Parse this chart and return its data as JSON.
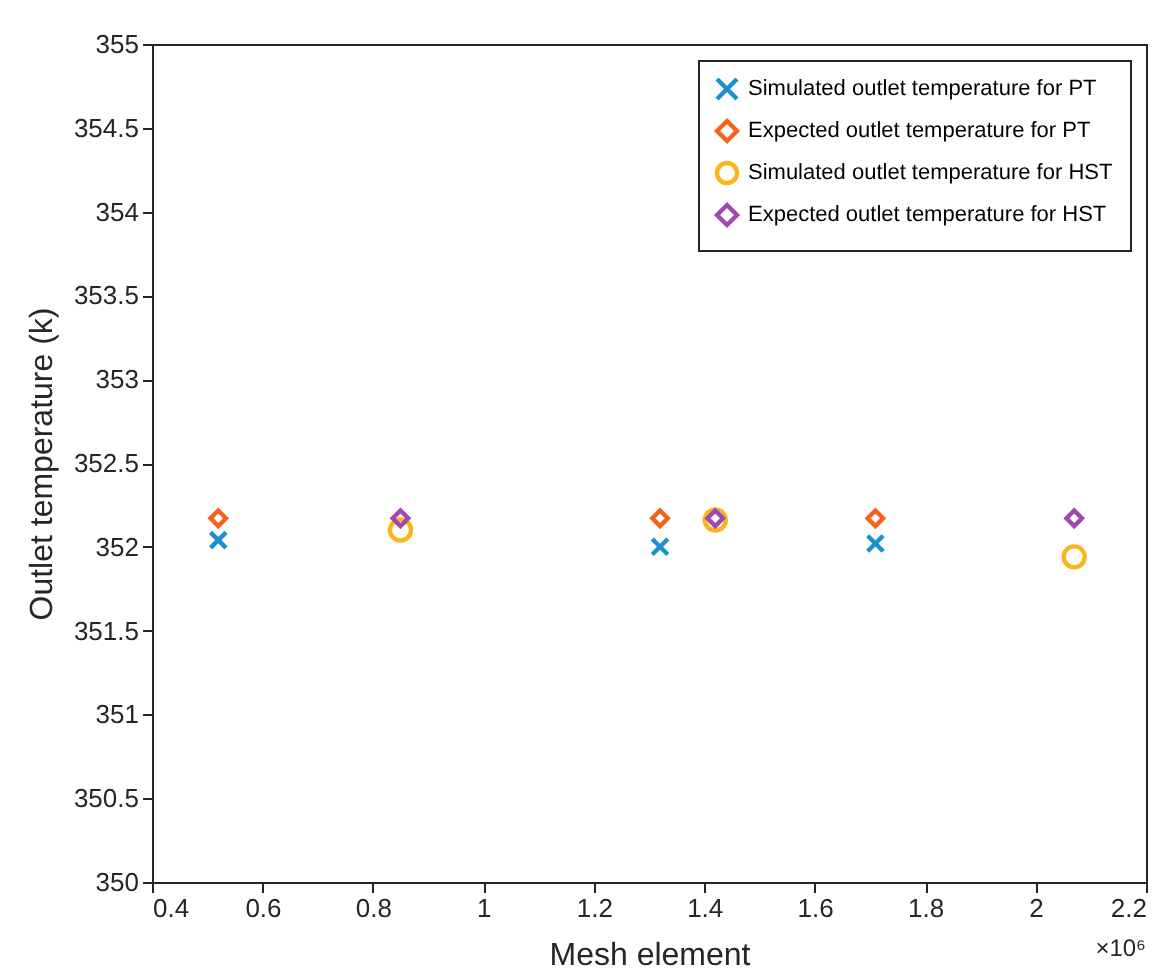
{
  "chart_data": {
    "type": "scatter",
    "xlabel": "Mesh element",
    "ylabel": "Outlet temperature (k)",
    "xlim": [
      0.4,
      2.2
    ],
    "xticks": [
      0.4,
      0.6,
      0.8,
      1,
      1.2,
      1.4,
      1.6,
      1.8,
      2,
      2.2
    ],
    "ylim": [
      350,
      355
    ],
    "yticks": [
      350,
      350.5,
      351,
      351.5,
      352,
      352.5,
      353,
      353.5,
      354,
      354.5,
      355
    ],
    "grid": false,
    "legend": "top right",
    "annotations": [
      "×10⁶"
    ],
    "series": [
      {
        "name": "Simulated outlet temperature for PT",
        "color": "#1a8fd4",
        "marker": "cross",
        "x": [
          0.52,
          1.32,
          1.71
        ],
        "values": [
          352.04,
          352.0,
          352.02
        ]
      },
      {
        "name": "Expected outlet temperature for PT",
        "color": "#f5621c",
        "marker": "diamond",
        "x": [
          0.52,
          1.32,
          1.71
        ],
        "values": [
          352.17,
          352.17,
          352.17
        ]
      },
      {
        "name": "Simulated outlet temperature for HST",
        "color": "#f9b51b",
        "marker": "circle",
        "x": [
          0.85,
          1.42,
          2.07
        ],
        "values": [
          352.1,
          352.16,
          351.94
        ]
      },
      {
        "name": "Expected outlet temperature for HST",
        "color": "#a047b0",
        "marker": "diamond",
        "x": [
          0.85,
          1.42,
          2.07
        ],
        "values": [
          352.17,
          352.17,
          352.17
        ]
      }
    ]
  }
}
